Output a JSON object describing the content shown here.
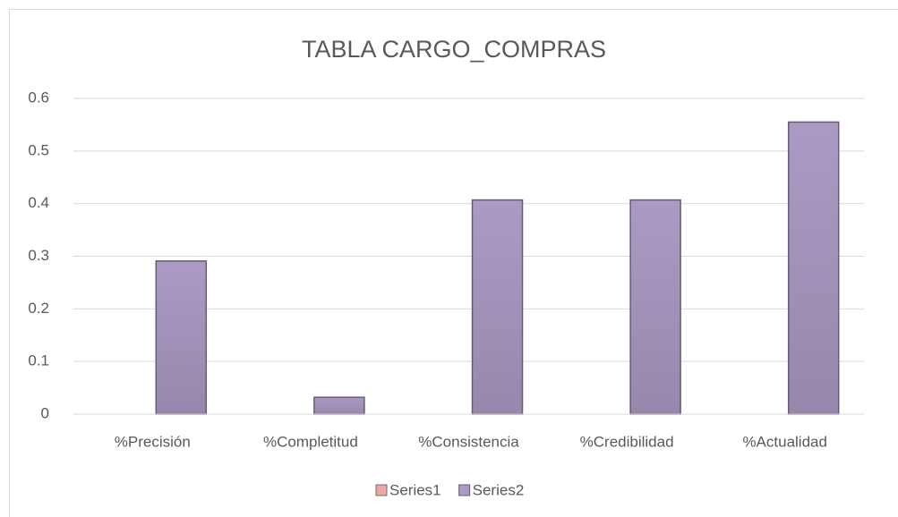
{
  "chart_data": {
    "type": "bar",
    "title": "TABLA CARGO_COMPRAS",
    "categories": [
      "%Precisión",
      "%Completitud",
      "%Consistencia",
      "%Credibilidad",
      "%Actualidad"
    ],
    "series": [
      {
        "name": "Series1",
        "color": "#e6a9a6",
        "values": [
          0,
          0,
          0,
          0,
          0
        ]
      },
      {
        "name": "Series2",
        "color": "#ab9ac4",
        "values": [
          0.291,
          0.032,
          0.407,
          0.407,
          0.555
        ]
      }
    ],
    "ylim": [
      0,
      0.6
    ],
    "yticks": [
      0,
      0.1,
      0.2,
      0.3,
      0.4,
      0.5,
      0.6
    ],
    "grid": true,
    "legend": "bottom"
  }
}
